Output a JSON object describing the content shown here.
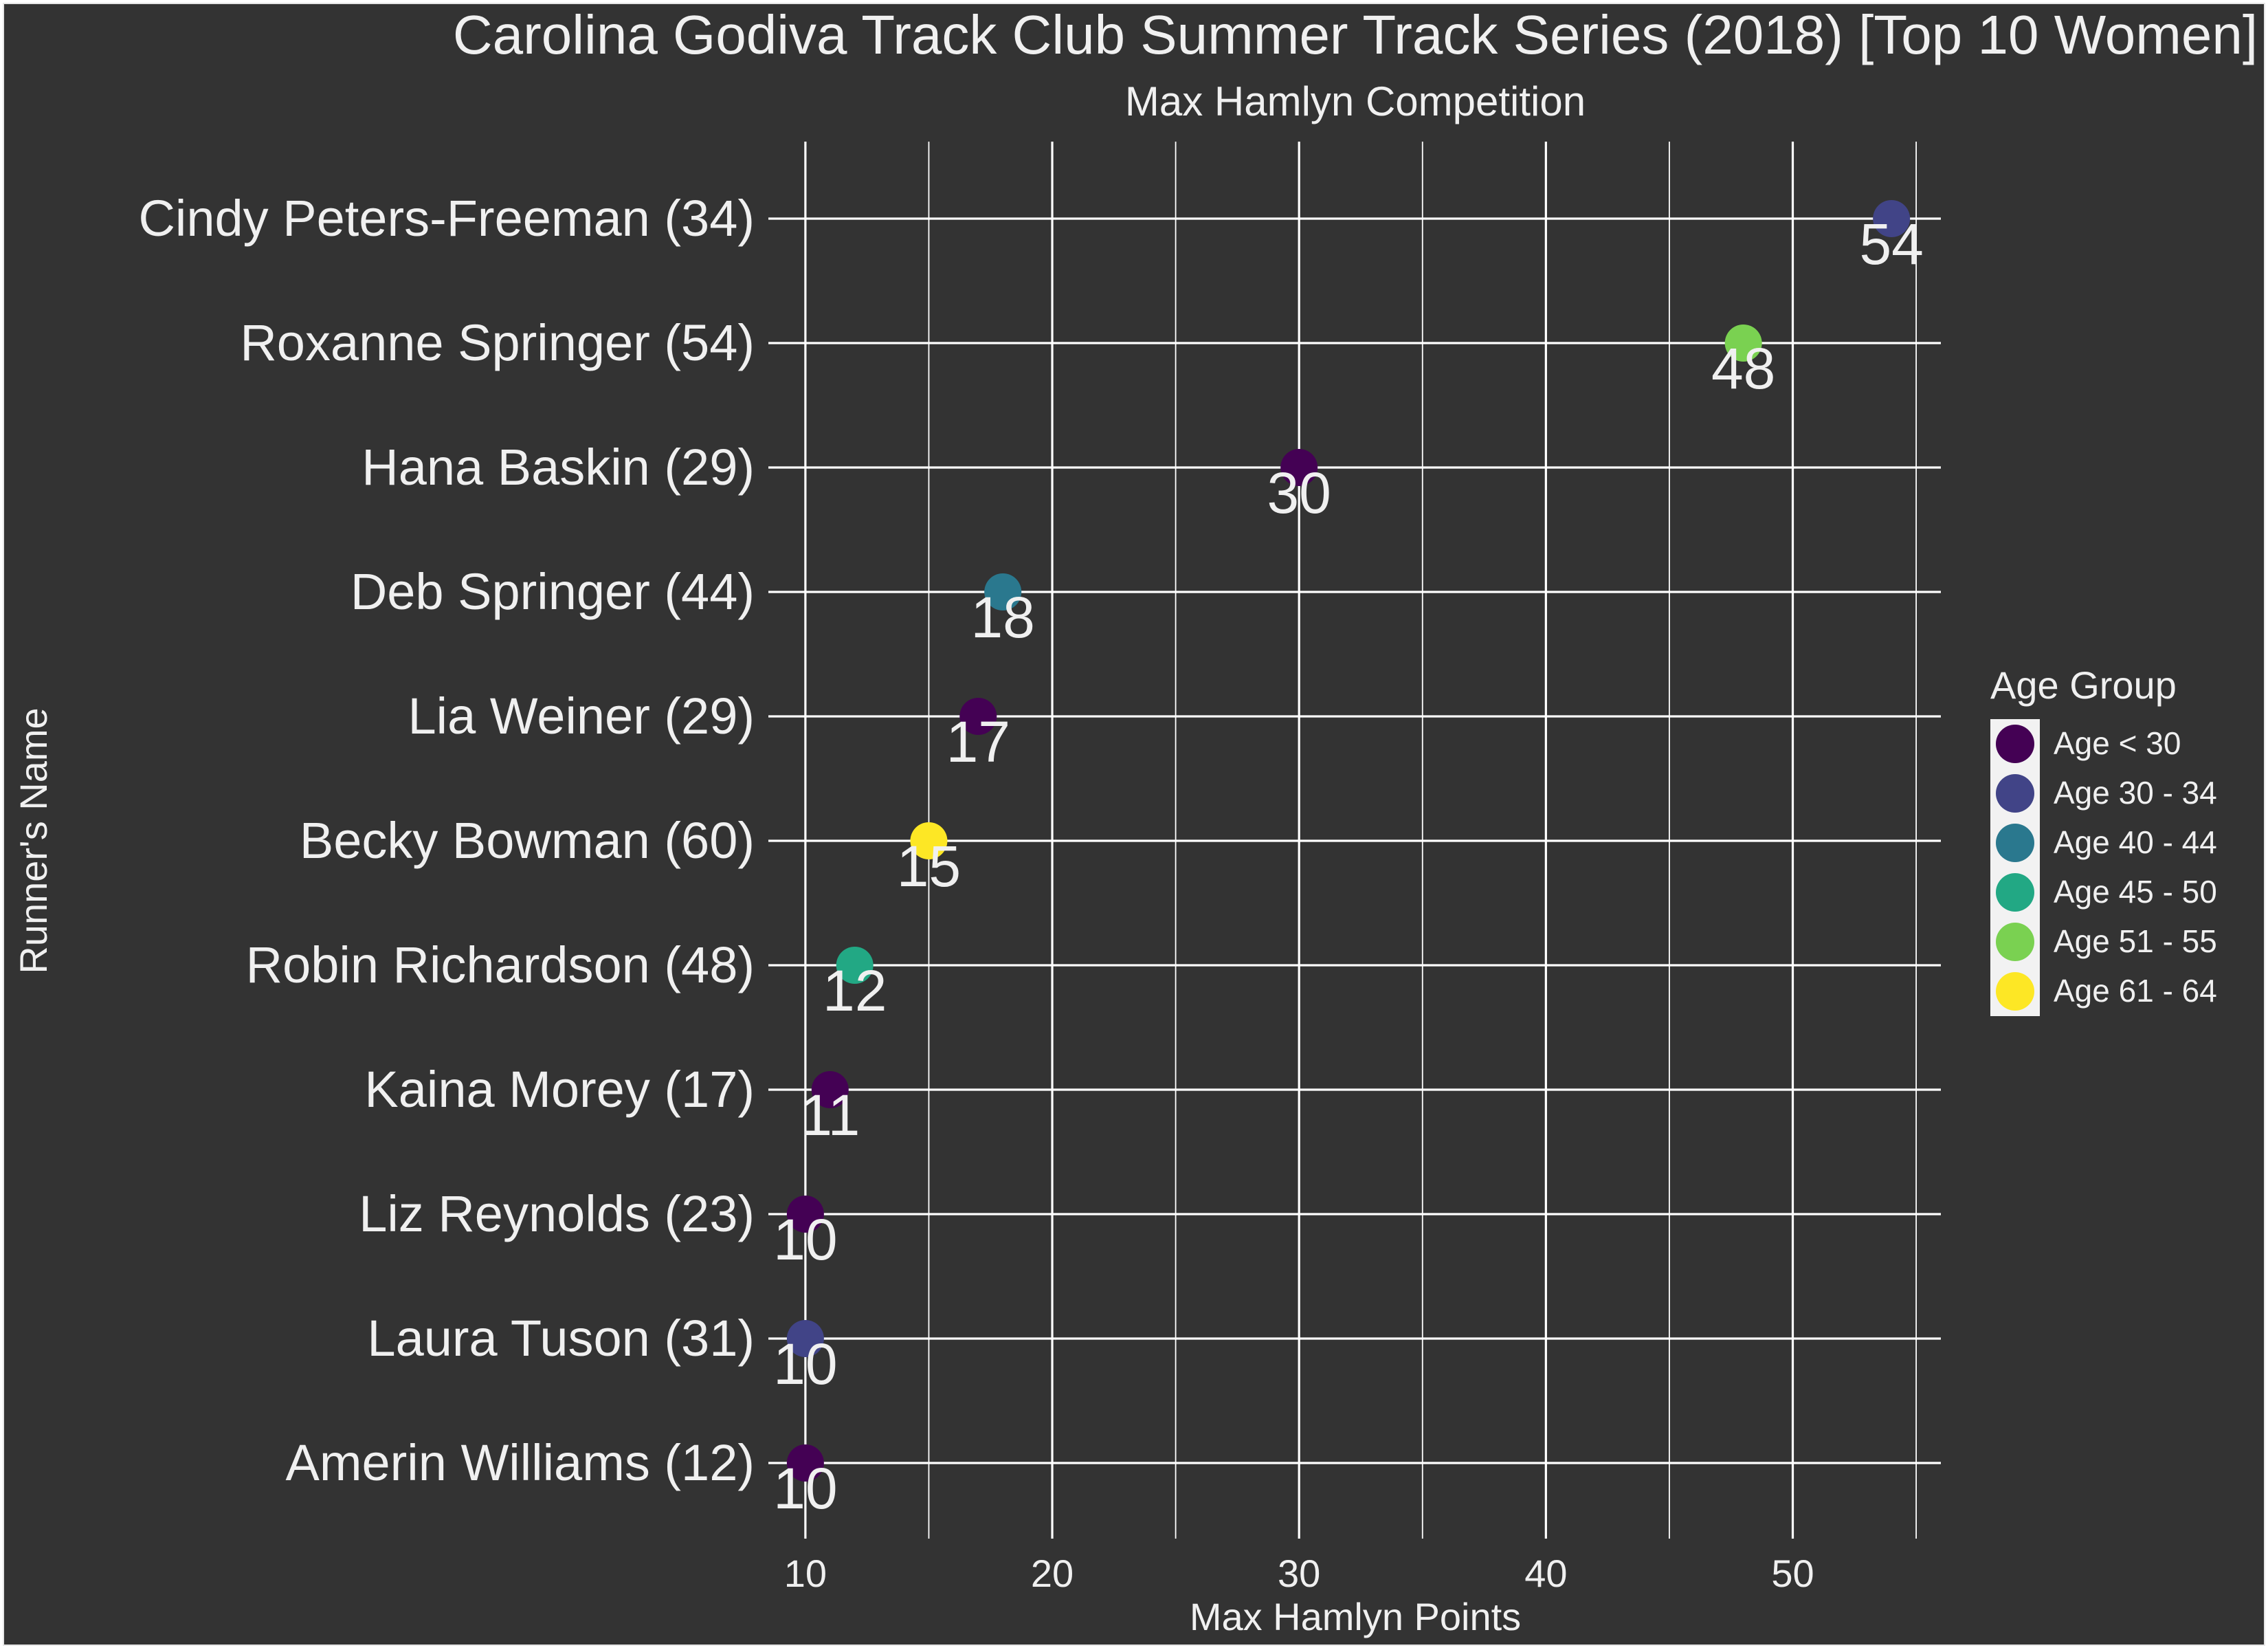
{
  "chart_data": {
    "type": "scatter",
    "title": "Carolina Godiva Track Club Summer Track Series (2018) [Top 10 Women]",
    "subtitle": "Max Hamlyn Competition",
    "xlabel": "Max Hamlyn Points",
    "ylabel": "Runner's Name",
    "xlim": [
      8.5,
      56
    ],
    "x_ticks": [
      10,
      20,
      30,
      40,
      50
    ],
    "grid": true,
    "legend": {
      "title": "Age Group",
      "placement": "right",
      "items": [
        {
          "label": "Age < 30",
          "color": "#440154"
        },
        {
          "label": "Age 30 - 34",
          "color": "#414487"
        },
        {
          "label": "Age 40 - 44",
          "color": "#2A788E"
        },
        {
          "label": "Age 45 - 50",
          "color": "#22A884"
        },
        {
          "label": "Age 51 - 55",
          "color": "#7AD151"
        },
        {
          "label": "Age 61 - 64",
          "color": "#FDE725"
        }
      ]
    },
    "points": [
      {
        "runner": "Cindy Peters-Freeman (34)",
        "value": 54,
        "label": "54",
        "group": "Age 30 - 34"
      },
      {
        "runner": "Roxanne Springer (54)",
        "value": 48,
        "label": "48",
        "group": "Age 51 - 55"
      },
      {
        "runner": "Hana Baskin (29)",
        "value": 30,
        "label": "30",
        "group": "Age < 30"
      },
      {
        "runner": "Deb Springer (44)",
        "value": 18,
        "label": "18",
        "group": "Age 40 - 44"
      },
      {
        "runner": "Lia Weiner (29)",
        "value": 17,
        "label": "17",
        "group": "Age < 30"
      },
      {
        "runner": "Becky Bowman (60)",
        "value": 15,
        "label": "15",
        "group": "Age 61 - 64"
      },
      {
        "runner": "Robin Richardson (48)",
        "value": 12,
        "label": "12",
        "group": "Age 45 - 50"
      },
      {
        "runner": "Kaina Morey (17)",
        "value": 11,
        "label": "11",
        "group": "Age < 30"
      },
      {
        "runner": "Liz Reynolds (23)",
        "value": 10,
        "label": "10",
        "group": "Age < 30"
      },
      {
        "runner": "Laura Tuson (31)",
        "value": 10,
        "label": "10",
        "group": "Age 30 - 34"
      },
      {
        "runner": "Amerin Williams (12)",
        "value": 10,
        "label": "10",
        "group": "Age < 30"
      }
    ]
  }
}
